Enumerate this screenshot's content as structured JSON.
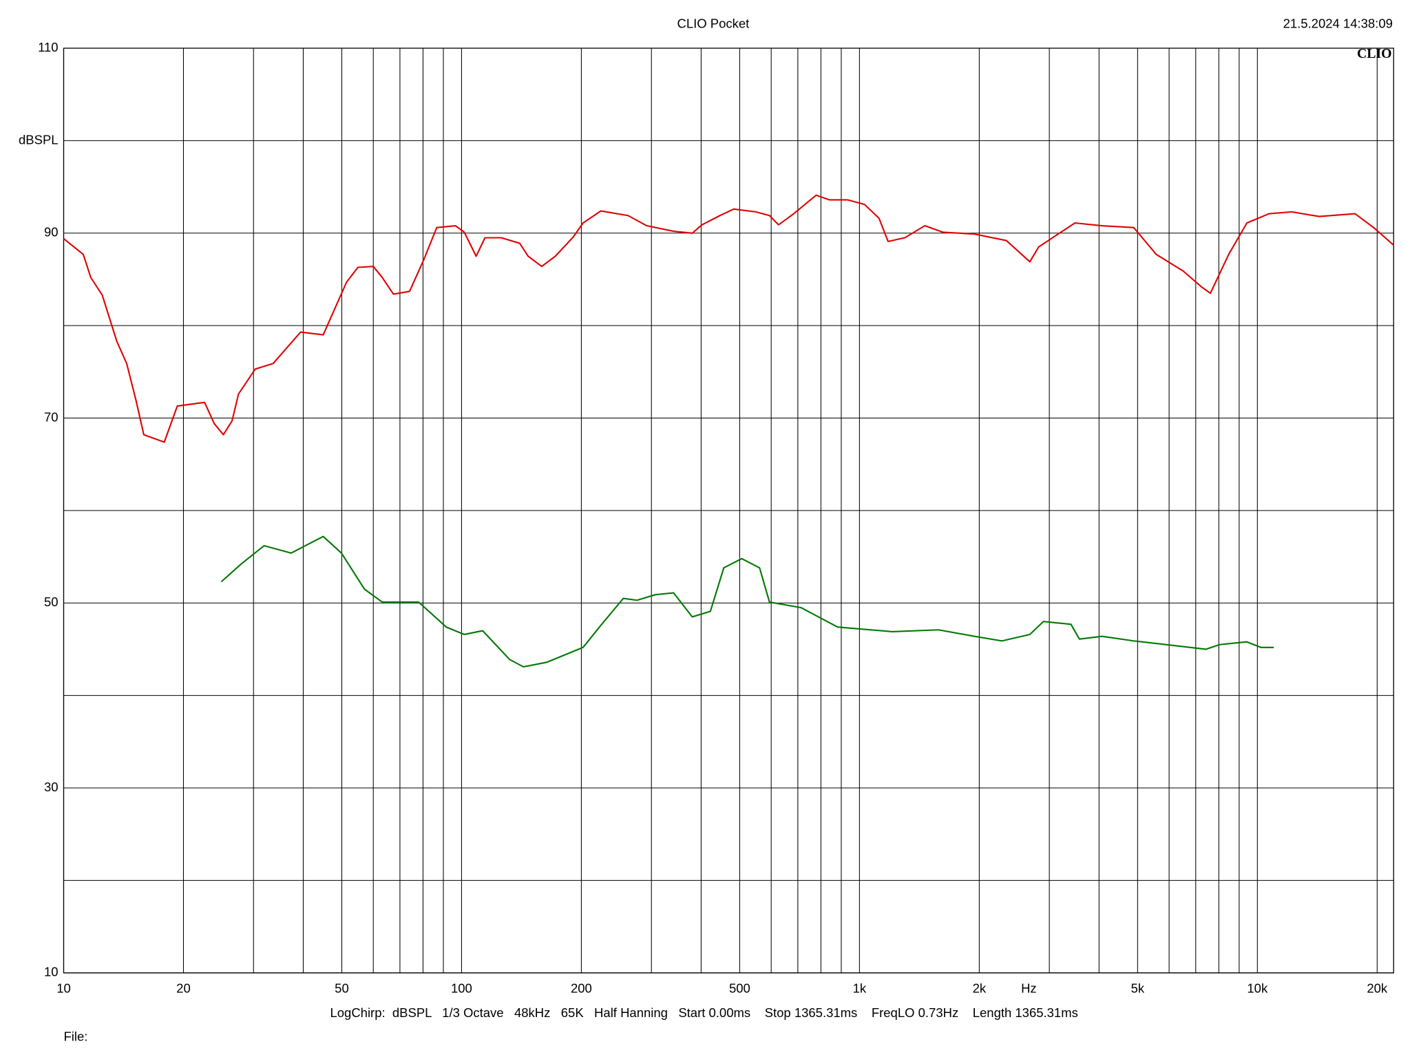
{
  "chart_data": {
    "type": "line",
    "title": "CLIO Pocket",
    "timestamp": "21.5.2024 14:38:09",
    "logo": "CLIO",
    "y_label": "dBSPL",
    "x_label": "Hz",
    "footer": "LogChirp:  dBSPL   1/3 Octave   48kHz   65K   Half Hanning   Start 0.00ms    Stop 1365.31ms    FreqLO 0.73Hz    Length 1365.31ms",
    "file_label": "File:",
    "xscale": "log",
    "xlim": [
      10,
      22000
    ],
    "ylim": [
      10,
      110
    ],
    "xticks": [
      10,
      20,
      50,
      100,
      200,
      500,
      {
        "value": 1000,
        "label": "1k"
      },
      {
        "value": 2000,
        "label": "2k"
      },
      {
        "value": 5000,
        "label": "5k"
      },
      {
        "value": 10000,
        "label": "10k"
      },
      {
        "value": 20000,
        "label": "20k"
      }
    ],
    "x_minor_grid": [
      30,
      40,
      60,
      70,
      80,
      90,
      300,
      400,
      600,
      700,
      800,
      900,
      3000,
      4000,
      6000,
      7000,
      8000,
      9000
    ],
    "yticks": [
      10,
      30,
      50,
      70,
      90,
      110
    ],
    "y_minor_grid": [
      20,
      40,
      60,
      80,
      100
    ],
    "grid": true,
    "series": [
      {
        "color": "#e00000",
        "x": [
          10,
          11.2,
          11.7,
          12.5,
          13.6,
          14.4,
          15.2,
          15.9,
          17.9,
          19.3,
          22.6,
          23.9,
          25.2,
          26.5,
          27.5,
          30.3,
          33.6,
          39.4,
          44.9,
          47.3,
          51.4,
          54.9,
          60,
          63.2,
          67.4,
          74,
          80.5,
          86.6,
          96.5,
          101.6,
          108.8,
          114.5,
          125.9,
          140,
          147,
          159,
          172,
          191,
          202,
          224,
          262,
          292,
          341,
          380,
          402,
          446,
          483,
          549,
          594,
          626,
          679,
          778,
          840,
          933,
          1030,
          1120,
          1180,
          1300,
          1460,
          1620,
          1945,
          2340,
          2680,
          2820,
          3130,
          3480,
          4070,
          4890,
          5570,
          6510,
          7230,
          7620,
          8470,
          9410,
          10700,
          12200,
          14300,
          17600,
          19600,
          22000
        ],
        "values": [
          89.4,
          87.7,
          85.2,
          83.3,
          78.3,
          75.9,
          71.9,
          68.2,
          67.4,
          71.3,
          71.7,
          69.4,
          68.2,
          69.7,
          72.6,
          75.3,
          75.9,
          79.3,
          79.0,
          81.2,
          84.7,
          86.3,
          86.4,
          85.2,
          83.4,
          83.7,
          87.2,
          90.6,
          90.8,
          90.1,
          87.5,
          89.5,
          89.5,
          88.9,
          87.5,
          86.4,
          87.5,
          89.6,
          91.1,
          92.4,
          91.9,
          90.8,
          90.2,
          90.0,
          90.9,
          91.9,
          92.6,
          92.3,
          91.9,
          90.9,
          92.0,
          94.1,
          93.6,
          93.6,
          93.1,
          91.6,
          89.1,
          89.5,
          90.8,
          90.1,
          89.9,
          89.2,
          86.9,
          88.5,
          89.8,
          91.1,
          90.8,
          90.6,
          87.7,
          85.9,
          84.2,
          83.5,
          87.7,
          91.1,
          92.1,
          92.3,
          91.8,
          92.1,
          90.6,
          88.7
        ]
      },
      {
        "color": "#007800",
        "x": [
          24.9,
          27.9,
          31.9,
          37.3,
          44.9,
          49.9,
          57,
          63.2,
          78,
          91.5,
          101.6,
          113,
          132,
          143,
          164,
          182,
          202,
          224,
          255,
          276,
          307,
          341,
          380,
          422,
          456,
          506,
          561,
          594,
          713,
          881,
          1000,
          1210,
          1580,
          1945,
          2280,
          2680,
          2900,
          3400,
          3570,
          4070,
          4890,
          6170,
          7420,
          8040,
          9410,
          10200,
          11000
        ],
        "values": [
          52.3,
          54.2,
          56.2,
          55.4,
          57.2,
          55.4,
          51.5,
          50.1,
          50.1,
          47.4,
          46.6,
          47.0,
          43.9,
          43.1,
          43.6,
          44.4,
          45.2,
          47.6,
          50.5,
          50.3,
          50.9,
          51.1,
          48.5,
          49.1,
          53.8,
          54.8,
          53.8,
          50.1,
          49.5,
          47.4,
          47.2,
          46.9,
          47.1,
          46.4,
          45.9,
          46.6,
          48.0,
          47.7,
          46.1,
          46.4,
          45.9,
          45.4,
          45.0,
          45.5,
          45.8,
          45.2,
          45.2
        ]
      }
    ]
  }
}
